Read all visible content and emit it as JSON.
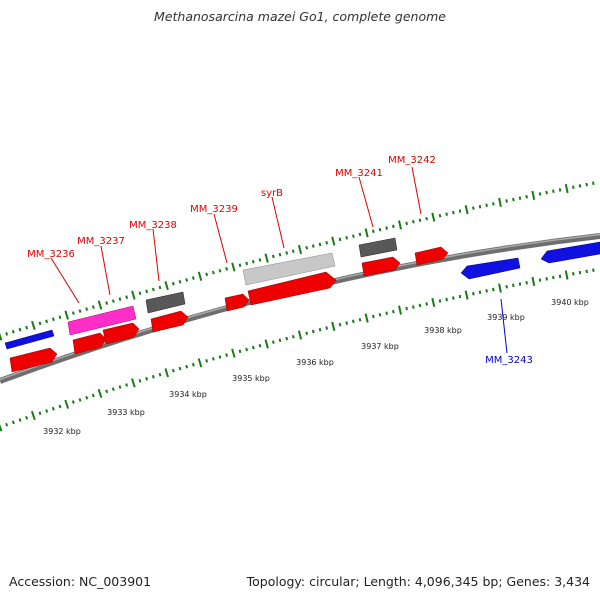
{
  "title": "Methanosarcina mazei Go1, complete genome",
  "footer": {
    "accession": "Accession: NC_003901",
    "summary": "Topology: circular; Length: 4,096,345 bp; Genes: 3,434"
  },
  "colors": {
    "backbone": "#808080",
    "tick": "#1a7a1a",
    "forward_gene": "#ff0000",
    "reverse_gene": "#0000ee",
    "pseudo_gene": "#ff33cc",
    "dark_feature": "#555555",
    "light_feature": "#c8c8c8",
    "forward_label": "#dd0000",
    "reverse_label": "#0000cc"
  },
  "scale_labels": [
    "3932 kbp",
    "3933 kbp",
    "3934 kbp",
    "3935 kbp",
    "3936 kbp",
    "3937 kbp",
    "3938 kbp",
    "3939 kbp",
    "3940 kbp"
  ],
  "gene_labels": [
    {
      "id": "mm-3236",
      "text": "MM_3236",
      "strand": "forward"
    },
    {
      "id": "mm-3237",
      "text": "MM_3237",
      "strand": "forward"
    },
    {
      "id": "mm-3238",
      "text": "MM_3238",
      "strand": "forward"
    },
    {
      "id": "mm-3239",
      "text": "MM_3239",
      "strand": "forward"
    },
    {
      "id": "syrb",
      "text": "syrB",
      "strand": "forward"
    },
    {
      "id": "mm-3241",
      "text": "MM_3241",
      "strand": "forward"
    },
    {
      "id": "mm-3242",
      "text": "MM_3242",
      "strand": "forward"
    },
    {
      "id": "mm-3243",
      "text": "MM_3243",
      "strand": "reverse"
    }
  ]
}
